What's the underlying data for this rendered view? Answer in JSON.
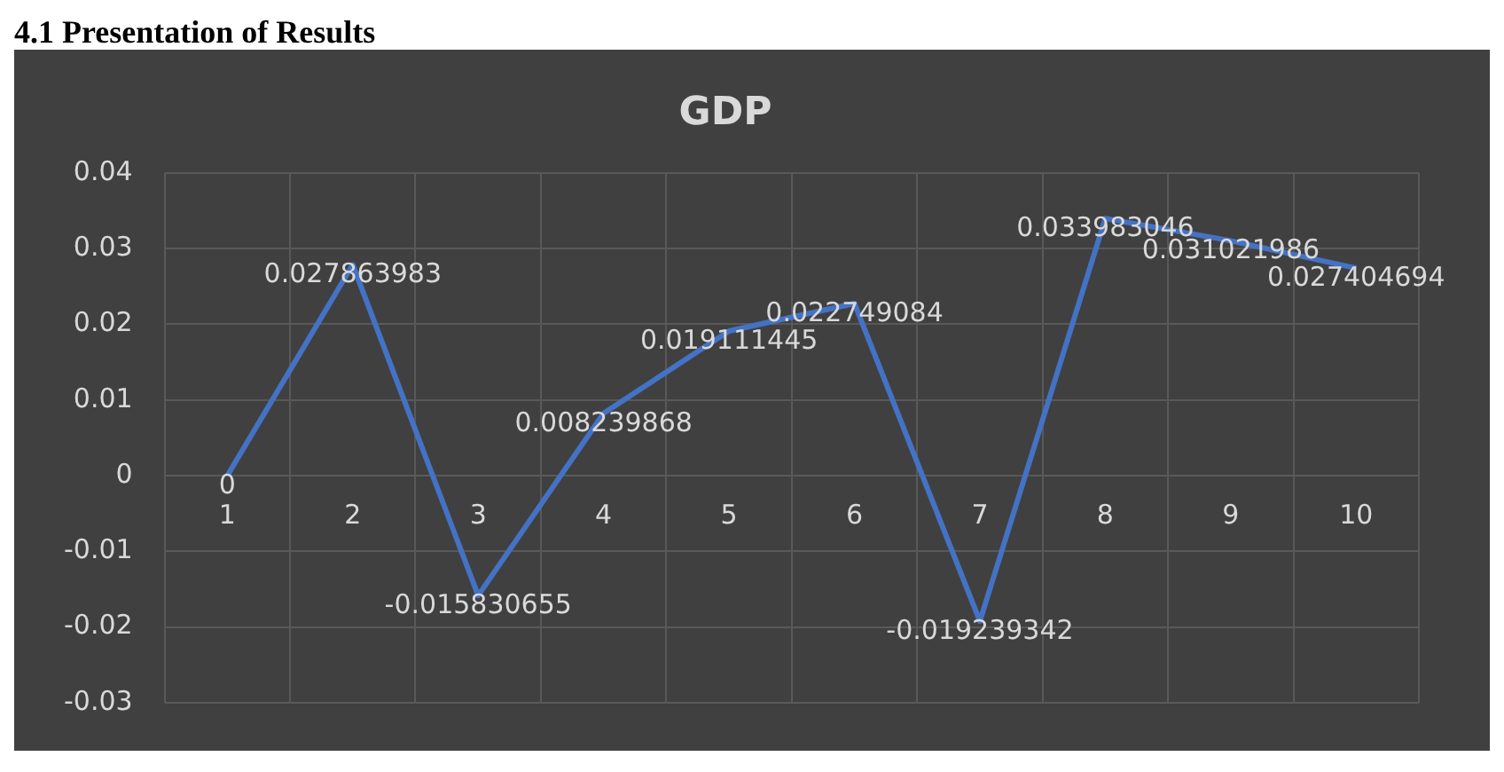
{
  "chart_data": {
    "type": "line",
    "title": "GDP",
    "annotations": [
      "4.1 Presentation of Results"
    ],
    "categories": [
      "1",
      "2",
      "3",
      "4",
      "5",
      "6",
      "7",
      "8",
      "9",
      "10"
    ],
    "series": [
      {
        "color": "#4472c4",
        "values": [
          0,
          0.027863983,
          -0.015830655,
          0.008239868,
          0.019111445,
          0.022749084,
          -0.019239342,
          0.033983046,
          0.031021986,
          0.027404694
        ]
      }
    ],
    "ylim": [
      -0.03,
      0.04
    ],
    "yticks": [
      -0.03,
      -0.02,
      -0.01,
      0,
      0.01,
      0.02,
      0.03,
      0.04
    ],
    "grid": true,
    "data_labels": true,
    "marker": "none",
    "line_style": "solid"
  }
}
